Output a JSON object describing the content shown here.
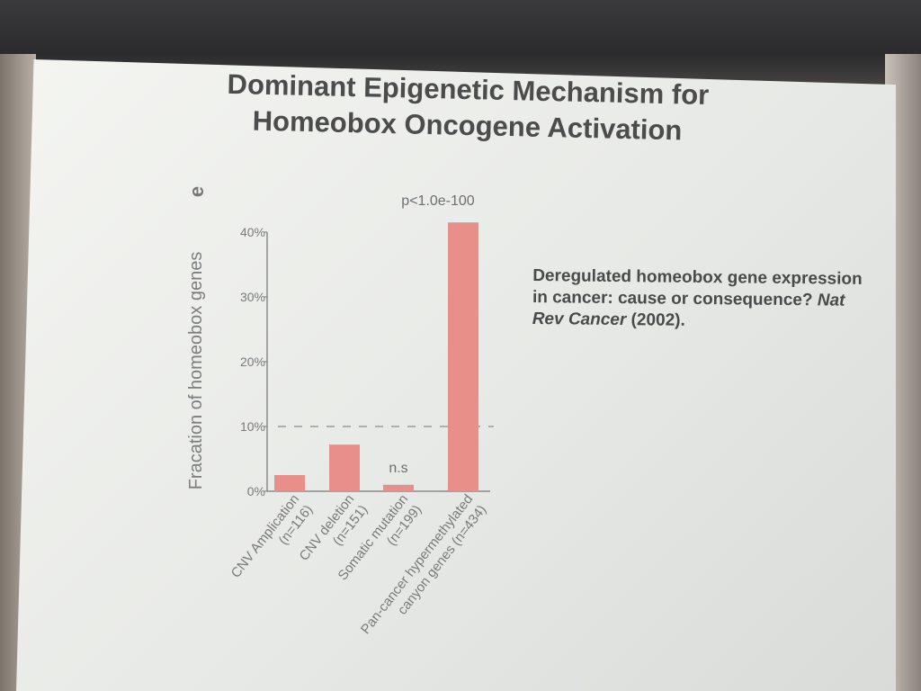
{
  "slide": {
    "title_line1": "Dominant Epigenetic Mechanism for",
    "title_line2": "Homeobox Oncogene Activation",
    "citation_text": "Deregulated homeobox gene expression in cancer: cause or consequence? ",
    "citation_journal": "Nat Rev Cancer",
    "citation_year": " (2002)."
  },
  "chart_data": {
    "type": "bar",
    "panel_label": "e",
    "ylabel": "Fracation of homeobox genes",
    "ylim": [
      0,
      40
    ],
    "yticks": [
      "0%",
      "10%",
      "20%",
      "30%",
      "40%"
    ],
    "categories": [
      [
        "CNV Amplication",
        "(n=116)"
      ],
      [
        "CNV deletion",
        "(n=151)"
      ],
      [
        "Somatic mutation",
        "(n=199)"
      ],
      [
        "Pan-cancer hypermethylated",
        "canyon genes (n=434)"
      ]
    ],
    "values": [
      2.5,
      7.2,
      1.0,
      41.5
    ],
    "bar_color": "#e88f8a",
    "reference_line": 10,
    "annotations": [
      {
        "text": "n.s",
        "category_index": 2
      },
      {
        "text": "p<1.0e-100",
        "category_index": 3
      }
    ]
  }
}
